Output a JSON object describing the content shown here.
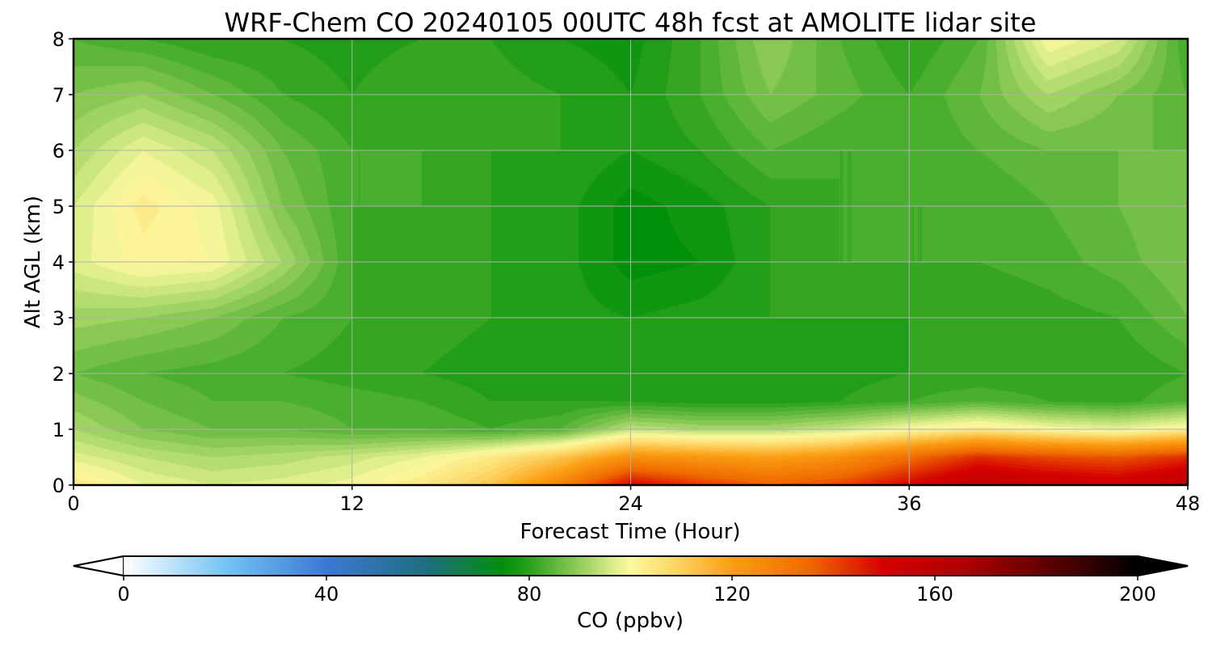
{
  "chart_data": {
    "type": "heatmap",
    "title": "WRF-Chem CO  20240105 00UTC 48h fcst at AMOLITE lidar site",
    "xlabel": "Forecast Time (Hour)",
    "ylabel": "Alt AGL (km)",
    "xlim": [
      0,
      48
    ],
    "ylim": [
      0,
      8
    ],
    "xticks": [
      0,
      12,
      24,
      36,
      48
    ],
    "yticks": [
      0,
      1,
      2,
      3,
      4,
      5,
      6,
      7,
      8
    ],
    "grid": true,
    "x": [
      0,
      3,
      6,
      9,
      12,
      15,
      18,
      21,
      24,
      27,
      30,
      33,
      36,
      39,
      42,
      45,
      48
    ],
    "y": [
      0,
      0.5,
      1,
      1.5,
      2,
      3,
      4,
      5,
      6,
      7,
      8
    ],
    "z_units": "ppbv",
    "z": [
      [
        104,
        98,
        96,
        97,
        99,
        104,
        112,
        128,
        150,
        142,
        136,
        140,
        150,
        160,
        156,
        154,
        160
      ],
      [
        97,
        94,
        92,
        93,
        95,
        98,
        104,
        112,
        124,
        122,
        120,
        124,
        134,
        144,
        140,
        138,
        144
      ],
      [
        92,
        88,
        86,
        86,
        84,
        84,
        82,
        84,
        94,
        92,
        92,
        95,
        100,
        104,
        100,
        98,
        102
      ],
      [
        89,
        86,
        84,
        84,
        83,
        82,
        80,
        80,
        80,
        79,
        79,
        80,
        82,
        84,
        82,
        81,
        84
      ],
      [
        86,
        84,
        83,
        82,
        81,
        80,
        79,
        78,
        78,
        78,
        79,
        79,
        80,
        80,
        80,
        80,
        82
      ],
      [
        91,
        90,
        88,
        84,
        82,
        81,
        80,
        79,
        78,
        79,
        80,
        80,
        80,
        80,
        81,
        82,
        86
      ],
      [
        97,
        101,
        100,
        92,
        82,
        81,
        80,
        79,
        75,
        76,
        80,
        82,
        82,
        82,
        83,
        85,
        88
      ],
      [
        96,
        103,
        99,
        88,
        82,
        82,
        80,
        79,
        75,
        77,
        80,
        82,
        82,
        82,
        84,
        86,
        88
      ],
      [
        92,
        98,
        94,
        86,
        82,
        82,
        80,
        80,
        78,
        80,
        84,
        82,
        82,
        84,
        86,
        86,
        86
      ],
      [
        88,
        90,
        86,
        82,
        80,
        82,
        81,
        80,
        78,
        82,
        88,
        85,
        82,
        86,
        92,
        88,
        84
      ],
      [
        84,
        82,
        80,
        80,
        79,
        80,
        80,
        78,
        77,
        82,
        90,
        84,
        80,
        84,
        100,
        96,
        82
      ]
    ],
    "colorbar": {
      "label": "CO  (ppbv)",
      "range": [
        0,
        200
      ],
      "ticks": [
        0,
        40,
        80,
        120,
        160,
        200
      ],
      "extend": "both",
      "colors": {
        "0": "#ffffff",
        "20": "#74c4f4",
        "40": "#3d78d4",
        "60": "#1e6e7e",
        "75": "#00900a",
        "80": "#2aa01c",
        "88": "#7ec44c",
        "96": "#d6eb86",
        "100": "#fcf89e",
        "108": "#fdd96a",
        "120": "#fb9e14",
        "135": "#f06a00",
        "150": "#d40000",
        "165": "#b00000",
        "180": "#6a0000",
        "200": "#000000"
      }
    }
  }
}
